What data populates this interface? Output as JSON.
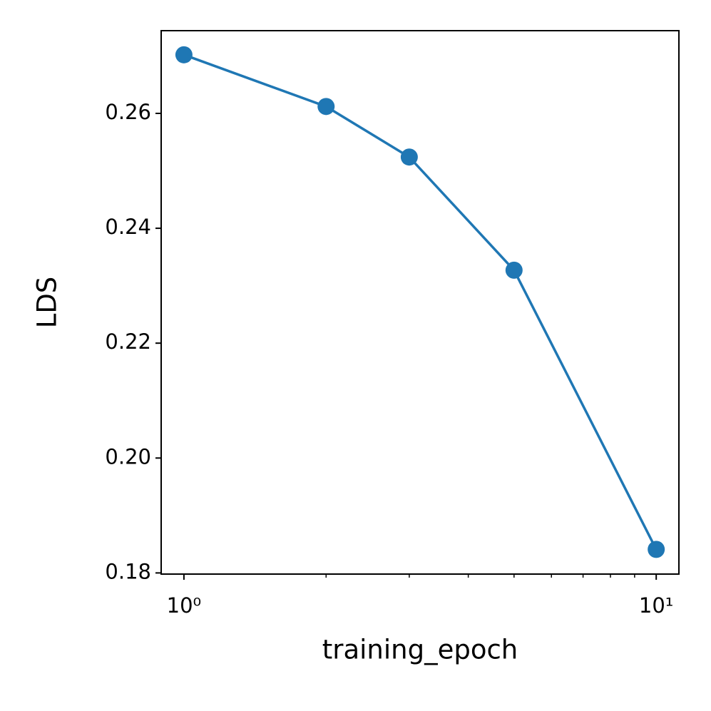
{
  "chart_data": {
    "type": "line",
    "x_label": "training_epoch",
    "y_label": "LDS",
    "x_scale": "log",
    "series": [
      {
        "color": "#1f77b4",
        "x": [
          1,
          2,
          3,
          5,
          10
        ],
        "values": [
          0.2702,
          0.2612,
          0.2524,
          0.2327,
          0.1841
        ]
      }
    ],
    "xlim": [
      0.895,
      11.17
    ],
    "ylim": [
      0.1798,
      0.2744
    ],
    "xticks": [
      {
        "value": 1,
        "label": "10⁰"
      },
      {
        "value": 10,
        "label": "10¹"
      }
    ],
    "xminorticks": [
      2,
      3,
      4,
      5,
      6,
      7,
      8,
      9
    ],
    "yticks": [
      {
        "value": 0.18,
        "label": "0.18"
      },
      {
        "value": 0.2,
        "label": "0.20"
      },
      {
        "value": 0.22,
        "label": "0.22"
      },
      {
        "value": 0.24,
        "label": "0.24"
      },
      {
        "value": 0.26,
        "label": "0.26"
      }
    ]
  }
}
